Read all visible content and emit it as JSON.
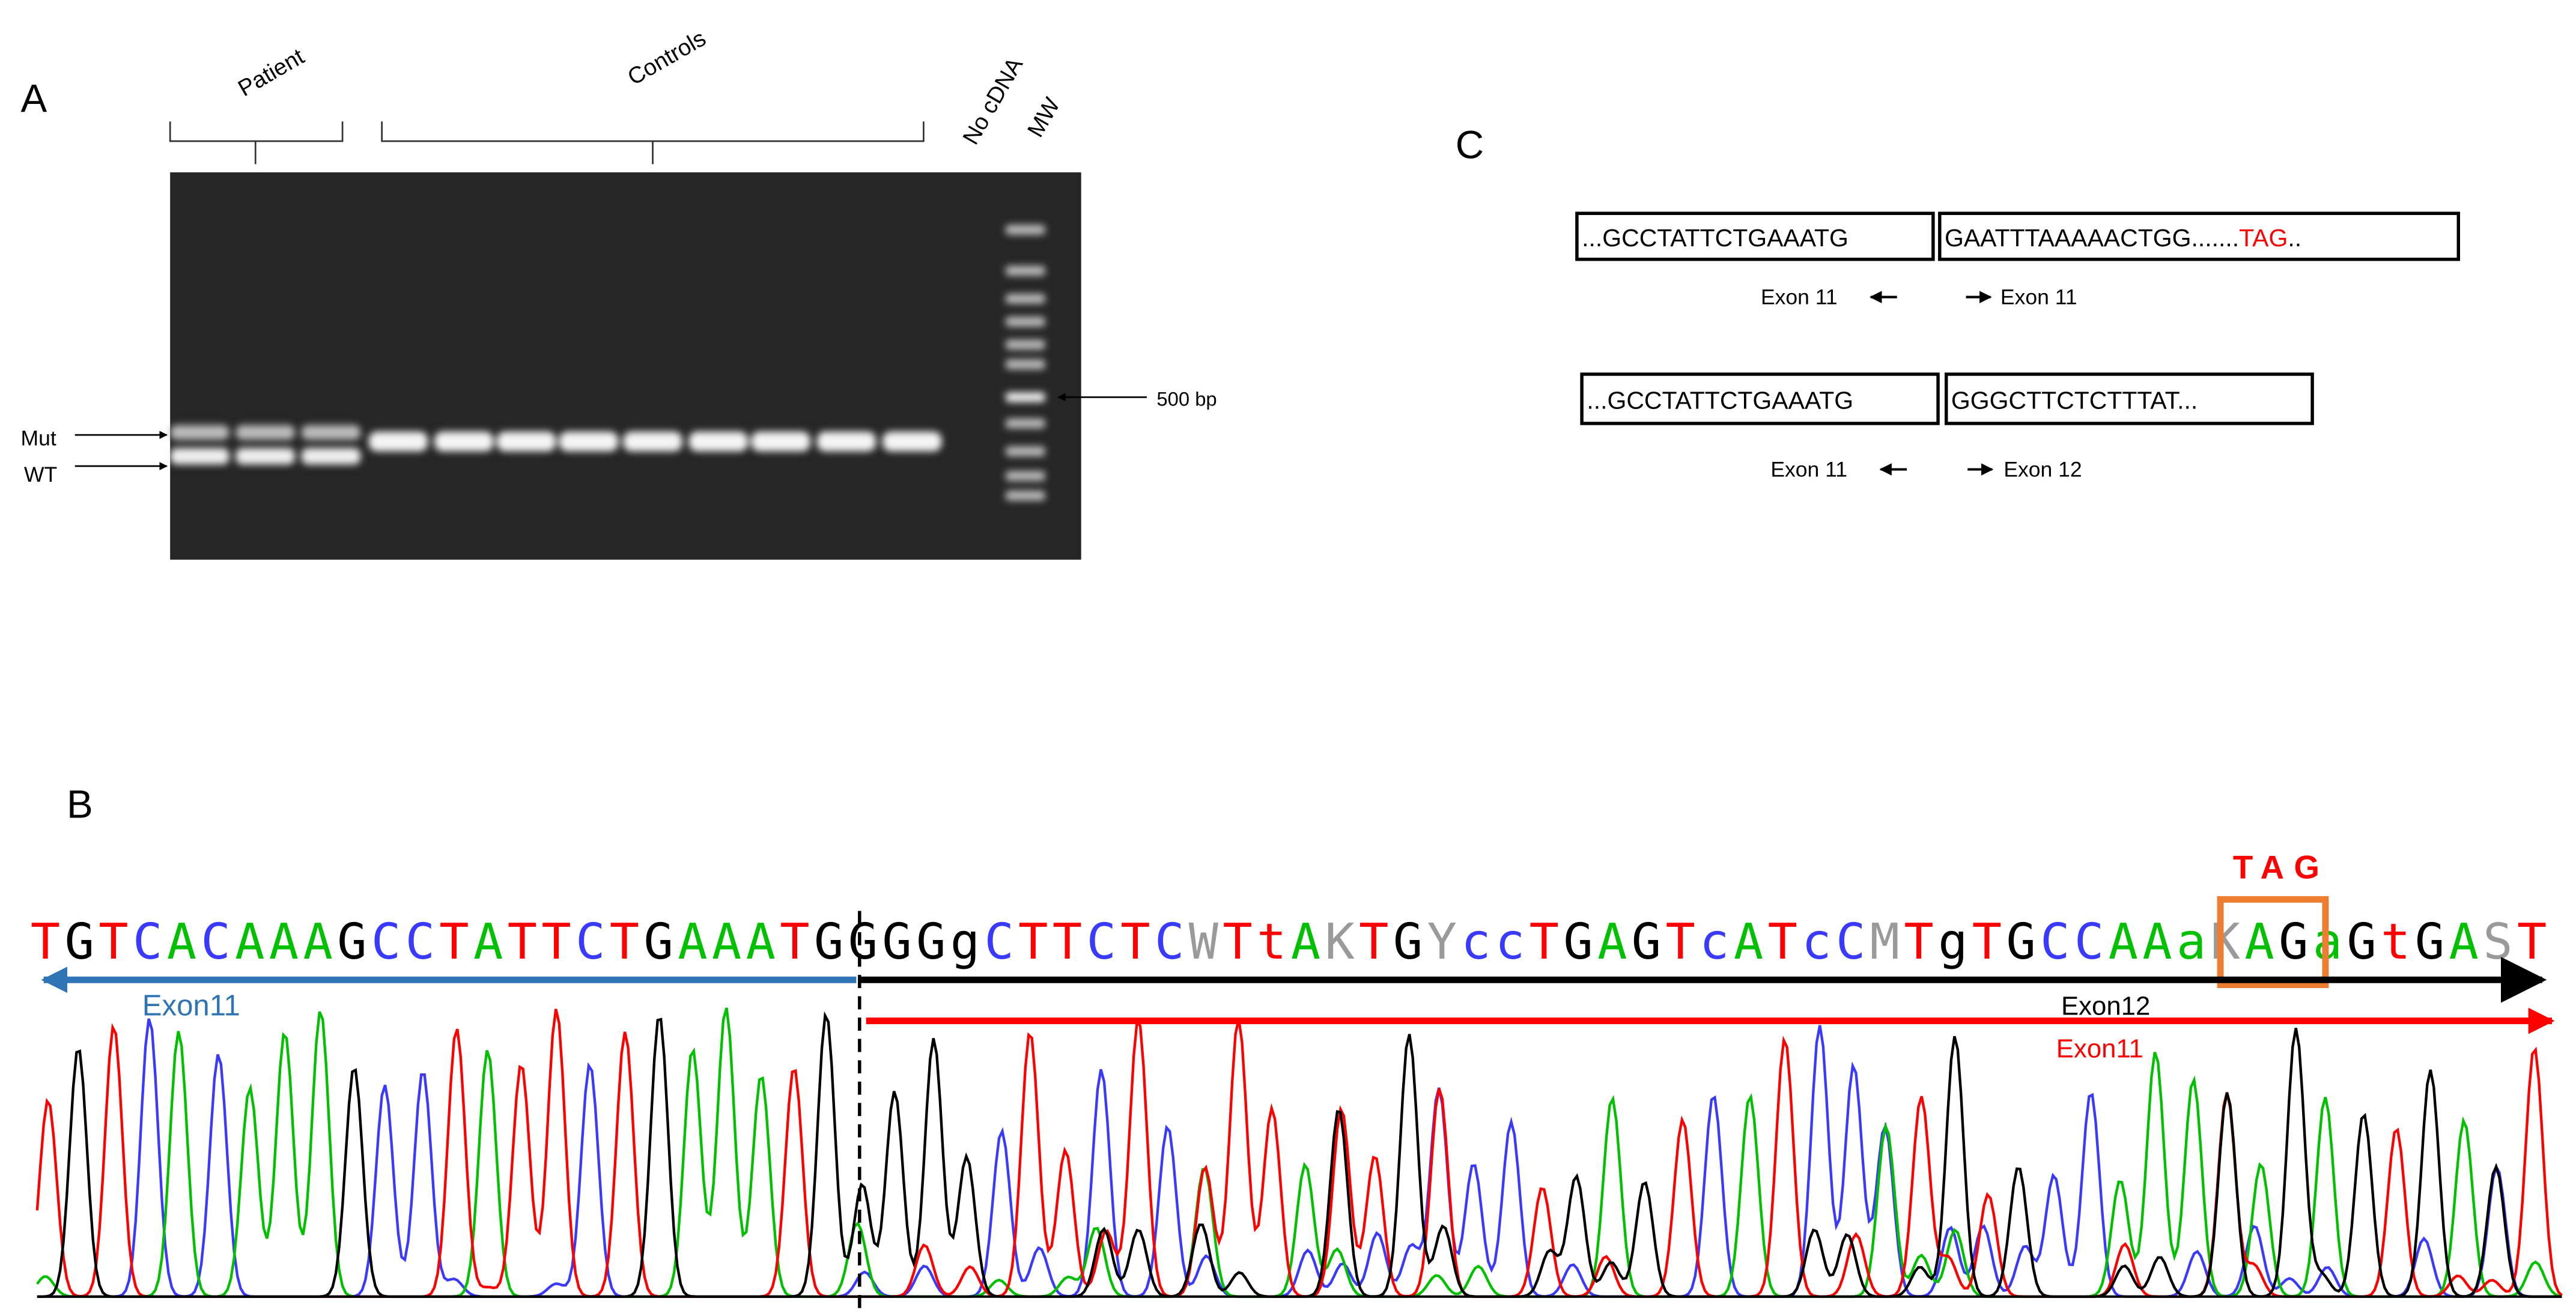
{
  "panel_a": {
    "label": "A",
    "groups": [
      "Patient",
      "Controls",
      "No cDNA",
      "MW"
    ],
    "band_labels": [
      "Mut",
      "WT"
    ],
    "marker": "500 bp"
  },
  "panel_c": {
    "label": "C",
    "rows": [
      {
        "left": "...GCCTATTCTGAAATG",
        "right": "GAATTTAAAAACTGG.......",
        "stop": "TAG",
        "tail": "..",
        "left_primer": "Exon 11",
        "right_primer": "Exon 11"
      },
      {
        "left": "...GCCTATTCTGAAATG",
        "right": "GGGCTTCTCTTTAT...",
        "left_primer": "Exon 11",
        "right_primer": "Exon 12"
      }
    ]
  },
  "panel_b": {
    "label": "B",
    "codon": "TAG",
    "sequence": [
      "TGTCACAAAGCCTATTCTGAAATG",
      "GGGgCTTCTCWTtAKTGYccTGAGTcATcCMTgTGCCAAaKAGaGtGAST"
    ],
    "exon_labels": [
      "Exon11",
      "Exon12",
      "Exon11"
    ]
  }
}
